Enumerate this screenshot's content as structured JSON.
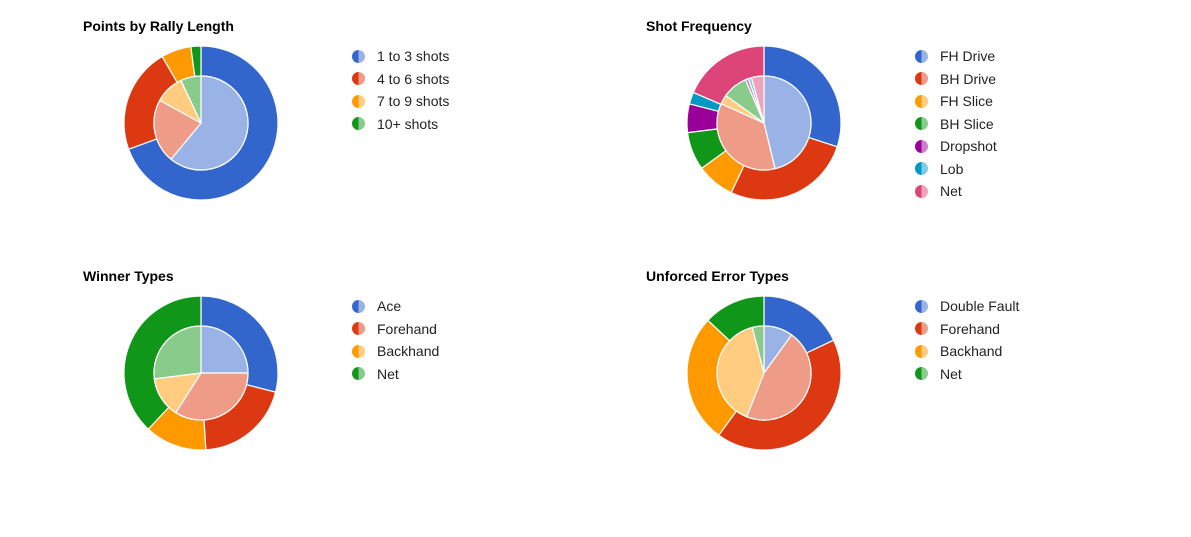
{
  "chart_data": [
    {
      "type": "pie",
      "style": "nested-donut",
      "title": "Points by Rally Length",
      "categories": [
        "1 to 3 shots",
        "4 to 6 shots",
        "7 to 9 shots",
        "10+ shots"
      ],
      "colors": {
        "outer": [
          "#3366cc",
          "#dc3912",
          "#ff9900",
          "#109618"
        ],
        "inner": [
          "#99b3e6",
          "#ee9c88",
          "#ffcc80",
          "#88cb8b"
        ]
      },
      "series": [
        {
          "ring": "outer",
          "values": [
            66,
            21,
            6,
            2
          ]
        },
        {
          "ring": "inner",
          "values": [
            61,
            22,
            10,
            7
          ]
        }
      ]
    },
    {
      "type": "pie",
      "style": "nested-donut",
      "title": "Shot Frequency",
      "categories": [
        "FH Drive",
        "BH Drive",
        "FH Slice",
        "BH Slice",
        "Dropshot",
        "Lob",
        "Net"
      ],
      "colors": {
        "outer": [
          "#3366cc",
          "#dc3912",
          "#ff9900",
          "#109618",
          "#990099",
          "#0099c6",
          "#dd4477"
        ],
        "inner": [
          "#99b3e6",
          "#ee9c88",
          "#ffcc80",
          "#88cb8b",
          "#cc80cc",
          "#80cce3",
          "#eea2bb"
        ]
      },
      "series": [
        {
          "ring": "outer",
          "values": [
            30,
            27,
            8,
            8,
            6,
            2.5,
            18.5
          ]
        },
        {
          "ring": "inner",
          "values": [
            43,
            33,
            3,
            8,
            1,
            1,
            4
          ]
        }
      ]
    },
    {
      "type": "pie",
      "style": "nested-donut",
      "title": "Winner Types",
      "categories": [
        "Ace",
        "Forehand",
        "Backhand",
        "Net"
      ],
      "colors": {
        "outer": [
          "#3366cc",
          "#dc3912",
          "#ff9900",
          "#109618"
        ],
        "inner": [
          "#99b3e6",
          "#ee9c88",
          "#ffcc80",
          "#88cb8b"
        ]
      },
      "series": [
        {
          "ring": "outer",
          "values": [
            29,
            20,
            13,
            38
          ]
        },
        {
          "ring": "inner",
          "values": [
            25,
            34,
            14,
            27
          ]
        }
      ]
    },
    {
      "type": "pie",
      "style": "nested-donut",
      "title": "Unforced Error Types",
      "categories": [
        "Double Fault",
        "Forehand",
        "Backhand",
        "Net"
      ],
      "colors": {
        "outer": [
          "#3366cc",
          "#dc3912",
          "#ff9900",
          "#109618"
        ],
        "inner": [
          "#99b3e6",
          "#ee9c88",
          "#ffcc80",
          "#88cb8b"
        ]
      },
      "series": [
        {
          "ring": "outer",
          "values": [
            18,
            42,
            27,
            13
          ]
        },
        {
          "ring": "inner",
          "values": [
            10,
            46,
            40,
            4
          ]
        }
      ]
    }
  ]
}
